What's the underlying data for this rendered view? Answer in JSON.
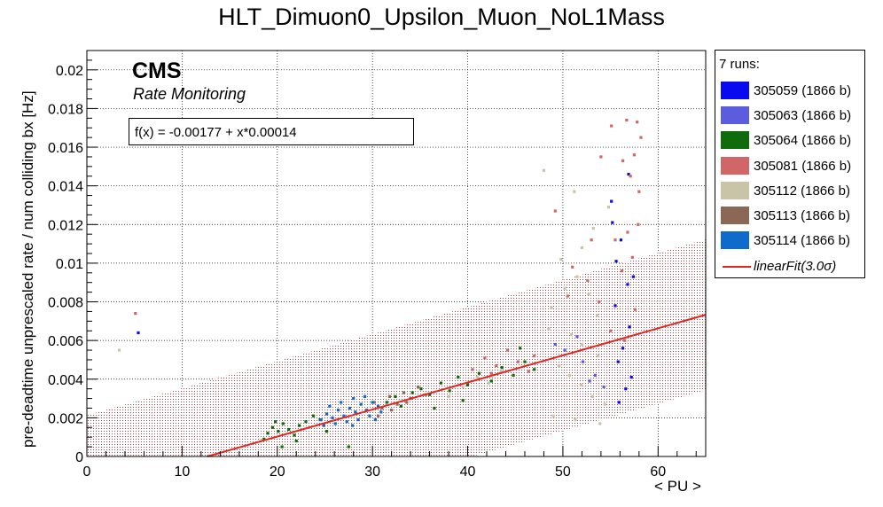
{
  "chart_data": {
    "type": "scatter",
    "title": "HLT_Dimuon0_Upsilon_Muon_NoL1Mass",
    "xlabel": "< PU >",
    "ylabel": "pre-deadtime unprescaled rate / num colliding bx [Hz]",
    "xlim": [
      0,
      65
    ],
    "ylim": [
      0,
      0.021
    ],
    "x_ticks": [
      "0",
      "10",
      "20",
      "30",
      "40",
      "50",
      "60"
    ],
    "y_ticks": [
      "0",
      "0.002",
      "0.004",
      "0.006",
      "0.008",
      "0.01",
      "0.012",
      "0.014",
      "0.016",
      "0.018",
      "0.02"
    ],
    "grid": true,
    "legend_position": "right",
    "annotations": {
      "experiment": "CMS",
      "subtitle": "Rate Monitoring",
      "fit_formula": "f(x) = -0.00177 + x*0.00014"
    },
    "legend_header": "7 runs:",
    "series": [
      {
        "name": "305059 (1866 b)",
        "color": "#0a0af0",
        "points": [
          [
            55.2,
            0.0121
          ],
          [
            56.1,
            0.0112
          ],
          [
            56.8,
            0.0089
          ],
          [
            55.5,
            0.0078
          ],
          [
            57.0,
            0.0067
          ],
          [
            56.3,
            0.0056
          ],
          [
            55.8,
            0.0049
          ],
          [
            57.2,
            0.0041
          ],
          [
            56.6,
            0.0035
          ],
          [
            55.9,
            0.0028
          ],
          [
            55.1,
            0.0132
          ],
          [
            56.9,
            0.0146
          ],
          [
            5.4,
            0.0064
          ],
          [
            55.6,
            0.0101
          ],
          [
            57.4,
            0.0093
          ]
        ]
      },
      {
        "name": "305063 (1866 b)",
        "color": "#5c5cdf",
        "points": [
          [
            50.2,
            0.0055
          ],
          [
            52.1,
            0.0049
          ],
          [
            53.4,
            0.0042
          ],
          [
            54.3,
            0.0036
          ],
          [
            51.5,
            0.0062
          ],
          [
            49.2,
            0.0058
          ],
          [
            52.8,
            0.0039
          ]
        ]
      },
      {
        "name": "305064 (1866 b)",
        "color": "#0f6b0b",
        "points": [
          [
            19.0,
            0.0012
          ],
          [
            19.5,
            0.0015
          ],
          [
            20.1,
            0.0013
          ],
          [
            20.6,
            0.0017
          ],
          [
            21.2,
            0.0014
          ],
          [
            21.8,
            0.0011
          ],
          [
            22.3,
            0.0016
          ],
          [
            23.0,
            0.0018
          ],
          [
            23.8,
            0.0021
          ],
          [
            24.5,
            0.0019
          ],
          [
            25.2,
            0.0013
          ],
          [
            18.6,
            0.0009
          ],
          [
            19.8,
            0.0018
          ],
          [
            22.0,
            0.0008
          ],
          [
            31.5,
            0.0028
          ],
          [
            32.4,
            0.0031
          ],
          [
            33.0,
            0.0026
          ],
          [
            34.2,
            0.0033
          ],
          [
            35.1,
            0.0035
          ],
          [
            36.0,
            0.0032
          ],
          [
            37.2,
            0.0038
          ],
          [
            38.1,
            0.0034
          ],
          [
            39.0,
            0.0041
          ],
          [
            40.0,
            0.0037
          ],
          [
            41.2,
            0.0043
          ],
          [
            42.5,
            0.0039
          ],
          [
            43.6,
            0.0046
          ],
          [
            44.8,
            0.0042
          ],
          [
            46.0,
            0.0049
          ],
          [
            47.0,
            0.0045
          ],
          [
            36.5,
            0.0025
          ],
          [
            39.5,
            0.0029
          ],
          [
            45.5,
            0.0056
          ],
          [
            27.5,
            0.0005
          ],
          [
            20.5,
            0.0005
          ]
        ]
      },
      {
        "name": "305081 (1866 b)",
        "color": "#d06666",
        "points": [
          [
            5.1,
            0.0074
          ],
          [
            57.8,
            0.0173
          ],
          [
            56.7,
            0.0174
          ],
          [
            55.1,
            0.0171
          ],
          [
            58.2,
            0.0165
          ],
          [
            54.0,
            0.0155
          ],
          [
            56.3,
            0.0153
          ],
          [
            57.5,
            0.0156
          ],
          [
            57.1,
            0.0145
          ],
          [
            58.0,
            0.0137
          ],
          [
            49.2,
            0.0127
          ],
          [
            53.0,
            0.0112
          ],
          [
            57.9,
            0.012
          ],
          [
            56.8,
            0.0116
          ],
          [
            55.5,
            0.0112
          ],
          [
            51.0,
            0.0098
          ],
          [
            52.6,
            0.0091
          ],
          [
            57.3,
            0.0103
          ],
          [
            56.2,
            0.0096
          ],
          [
            50.5,
            0.0083
          ],
          [
            53.8,
            0.008
          ],
          [
            57.6,
            0.0076
          ],
          [
            41.8,
            0.0051
          ],
          [
            43.0,
            0.0047
          ],
          [
            44.2,
            0.0055
          ],
          [
            45.3,
            0.0049
          ],
          [
            46.4,
            0.0044
          ],
          [
            47.0,
            0.0052
          ],
          [
            42.5,
            0.0043
          ],
          [
            40.5,
            0.0045
          ],
          [
            55.0,
            0.0065
          ],
          [
            56.5,
            0.006
          ]
        ]
      },
      {
        "name": "305112 (1866 b)",
        "color": "#c9c3a8",
        "points": [
          [
            3.4,
            0.0055
          ],
          [
            48.0,
            0.0148
          ],
          [
            51.2,
            0.0137
          ],
          [
            54.8,
            0.0129
          ],
          [
            53.2,
            0.0118
          ],
          [
            52.0,
            0.0108
          ],
          [
            49.8,
            0.0102
          ],
          [
            51.5,
            0.0093
          ],
          [
            50.2,
            0.0087
          ],
          [
            52.7,
            0.0084
          ],
          [
            48.8,
            0.0077
          ],
          [
            53.6,
            0.0073
          ],
          [
            48.5,
            0.0066
          ],
          [
            50.9,
            0.0063
          ],
          [
            52.0,
            0.0058
          ],
          [
            53.7,
            0.0052
          ],
          [
            49.6,
            0.0047
          ],
          [
            50.7,
            0.0042
          ],
          [
            51.9,
            0.0037
          ],
          [
            53.1,
            0.0031
          ],
          [
            54.4,
            0.0027
          ],
          [
            49.0,
            0.0021
          ],
          [
            51.3,
            0.0019
          ],
          [
            53.9,
            0.0017
          ],
          [
            38.0,
            0.0031
          ],
          [
            39.5,
            0.0036
          ],
          [
            41.0,
            0.0041
          ],
          [
            42.2,
            0.0038
          ],
          [
            43.5,
            0.0044
          ]
        ]
      },
      {
        "name": "305113 (1866 b)",
        "color": "#8b6856",
        "points": [
          [
            30.2,
            0.0028
          ],
          [
            31.0,
            0.0025
          ],
          [
            31.8,
            0.0031
          ],
          [
            32.6,
            0.0027
          ],
          [
            33.3,
            0.0033
          ],
          [
            34.0,
            0.003
          ],
          [
            34.8,
            0.0036
          ],
          [
            35.6,
            0.0032
          ],
          [
            30.6,
            0.0021
          ],
          [
            32.0,
            0.0024
          ],
          [
            33.6,
            0.0028
          ]
        ]
      },
      {
        "name": "305114 (1866 b)",
        "color": "#0e6bcc",
        "points": [
          [
            24.6,
            0.0019
          ],
          [
            25.2,
            0.0022
          ],
          [
            25.8,
            0.002
          ],
          [
            26.4,
            0.0024
          ],
          [
            27.0,
            0.0021
          ],
          [
            27.6,
            0.0025
          ],
          [
            28.2,
            0.0023
          ],
          [
            28.8,
            0.0027
          ],
          [
            29.4,
            0.0024
          ],
          [
            30.0,
            0.0028
          ],
          [
            30.6,
            0.0026
          ],
          [
            24.9,
            0.0016
          ],
          [
            26.1,
            0.0017
          ],
          [
            27.3,
            0.0018
          ],
          [
            28.5,
            0.0019
          ],
          [
            29.7,
            0.0021
          ],
          [
            30.9,
            0.0023
          ],
          [
            26.7,
            0.0028
          ],
          [
            28.0,
            0.003
          ],
          [
            29.2,
            0.0031
          ],
          [
            25.5,
            0.0026
          ],
          [
            27.9,
            0.0016
          ],
          [
            30.3,
            0.0019
          ]
        ]
      }
    ],
    "fit": {
      "name": "linearFit(3.0σ)",
      "intercept": -0.00177,
      "slope": 0.00014,
      "band_sigma": 3.0,
      "color": "#e8231e"
    }
  }
}
